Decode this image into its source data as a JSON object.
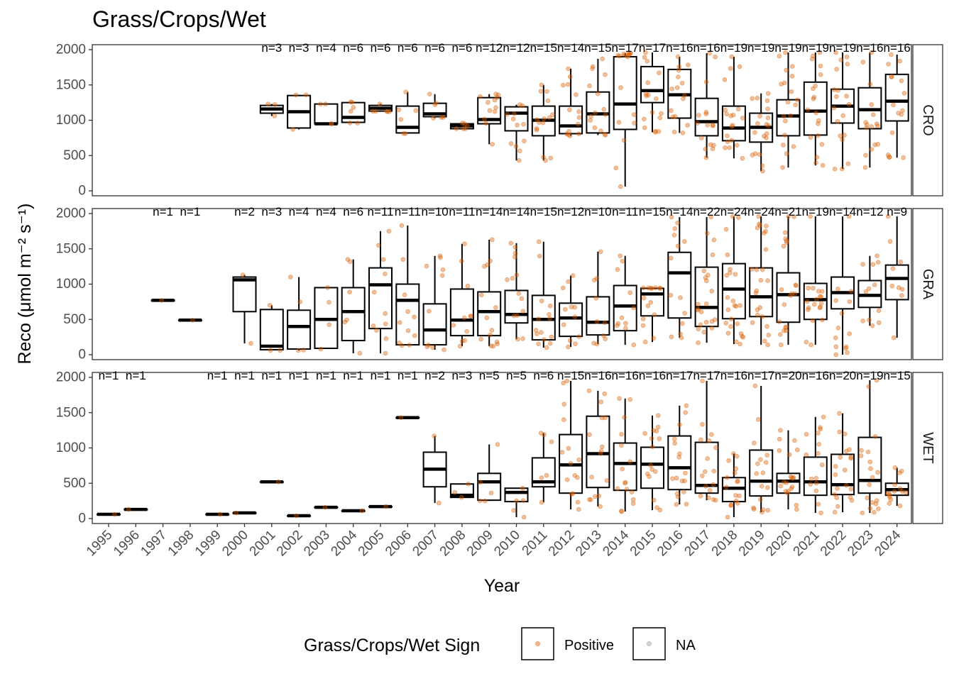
{
  "chart_data": {
    "type": "boxplot",
    "title": "Grass/Crops/Wet",
    "xlabel": "Year",
    "ylabel": "Reco (μmol m⁻² s⁻¹)",
    "ylim": [
      0,
      2000
    ],
    "y_ticks": [
      0,
      500,
      1000,
      1500,
      2000
    ],
    "categories": [
      "1995",
      "1996",
      "1997",
      "1998",
      "1999",
      "2000",
      "2001",
      "2002",
      "2003",
      "2004",
      "2005",
      "2006",
      "2007",
      "2008",
      "2009",
      "2010",
      "2011",
      "2012",
      "2013",
      "2014",
      "2015",
      "2016",
      "2017",
      "2018",
      "2019",
      "2020",
      "2021",
      "2022",
      "2023",
      "2024"
    ],
    "point_color": "#D95F02",
    "legend": {
      "title": "Grass/Crops/Wet Sign",
      "position": "bottom",
      "items": [
        {
          "label": "Positive",
          "color": "#D95F02"
        },
        {
          "label": "NA",
          "color": "#999999"
        }
      ]
    },
    "panels": [
      {
        "strip": "CRO",
        "n_labels": [
          "",
          "",
          "",
          "",
          "",
          "",
          "n=3",
          "n=3",
          "n=4",
          "n=6",
          "n=6",
          "n=6",
          "n=6",
          "n=6",
          "n=12",
          "n=12",
          "n=15",
          "n=14",
          "n=15",
          "n=17",
          "n=17",
          "n=16",
          "n=16",
          "n=19",
          "n=19",
          "n=19",
          "n=19",
          "n=19",
          "n=16",
          "n=16"
        ],
        "boxes": [
          null,
          null,
          null,
          null,
          null,
          null,
          {
            "min": 1060,
            "q1": 1100,
            "median": 1160,
            "q3": 1210,
            "max": 1230
          },
          {
            "min": 870,
            "q1": 890,
            "median": 1120,
            "q3": 1350,
            "max": 1360
          },
          {
            "min": 950,
            "q1": 950,
            "median": 950,
            "q3": 1230,
            "max": 1230
          },
          {
            "min": 960,
            "q1": 970,
            "median": 1040,
            "q3": 1250,
            "max": 1260
          },
          {
            "min": 1120,
            "q1": 1130,
            "median": 1170,
            "q3": 1210,
            "max": 1230
          },
          {
            "min": 810,
            "q1": 820,
            "median": 900,
            "q3": 1200,
            "max": 1400
          },
          {
            "min": 1030,
            "q1": 1050,
            "median": 1090,
            "q3": 1240,
            "max": 1370
          },
          {
            "min": 880,
            "q1": 880,
            "median": 920,
            "q3": 950,
            "max": 960
          },
          {
            "min": 660,
            "q1": 950,
            "median": 1010,
            "q3": 1320,
            "max": 1370
          },
          {
            "min": 430,
            "q1": 850,
            "median": 1100,
            "q3": 1190,
            "max": 1220
          },
          {
            "min": 430,
            "q1": 780,
            "median": 1000,
            "q3": 1200,
            "max": 1500
          },
          {
            "min": 780,
            "q1": 810,
            "median": 920,
            "q3": 1200,
            "max": 1730
          },
          {
            "min": 790,
            "q1": 820,
            "median": 1090,
            "q3": 1400,
            "max": 1870
          },
          {
            "min": 60,
            "q1": 870,
            "median": 1230,
            "q3": 1900,
            "max": 1950
          },
          {
            "min": 830,
            "q1": 1250,
            "median": 1420,
            "q3": 1760,
            "max": 1960
          },
          {
            "min": 820,
            "q1": 1030,
            "median": 1360,
            "q3": 1720,
            "max": 1900
          },
          {
            "min": 470,
            "q1": 780,
            "median": 980,
            "q3": 1310,
            "max": 1950
          },
          {
            "min": 460,
            "q1": 710,
            "median": 890,
            "q3": 1200,
            "max": 1900
          },
          {
            "min": 280,
            "q1": 690,
            "median": 900,
            "q3": 1100,
            "max": 1380
          },
          {
            "min": 330,
            "q1": 780,
            "median": 1060,
            "q3": 1290,
            "max": 1960
          },
          {
            "min": 360,
            "q1": 790,
            "median": 1130,
            "q3": 1540,
            "max": 1960
          },
          {
            "min": 310,
            "q1": 960,
            "median": 1200,
            "q3": 1440,
            "max": 1960
          },
          {
            "min": 330,
            "q1": 880,
            "median": 1150,
            "q3": 1460,
            "max": 1960
          },
          {
            "min": 470,
            "q1": 990,
            "median": 1270,
            "q3": 1650,
            "max": 1930
          }
        ]
      },
      {
        "strip": "GRA",
        "n_labels": [
          "",
          "",
          "n=1",
          "n=1",
          "",
          "n=2",
          "n=3",
          "n=4",
          "n=4",
          "n=6",
          "n=11",
          "n=11",
          "n=10",
          "n=11",
          "n=14",
          "n=14",
          "n=15",
          "n=12",
          "n=10",
          "n=11",
          "n=15",
          "n=14",
          "n=22",
          "n=24",
          "n=24",
          "n=21",
          "n=19",
          "n=14",
          "n=12",
          "n=9"
        ],
        "boxes": [
          null,
          null,
          {
            "min": 770,
            "q1": 770,
            "median": 770,
            "q3": 770,
            "max": 770
          },
          {
            "min": 490,
            "q1": 490,
            "median": 490,
            "q3": 490,
            "max": 490
          },
          null,
          {
            "min": 160,
            "q1": 610,
            "median": 1060,
            "q3": 1100,
            "max": 1130
          },
          {
            "min": 60,
            "q1": 70,
            "median": 120,
            "q3": 640,
            "max": 700
          },
          {
            "min": 60,
            "q1": 80,
            "median": 400,
            "q3": 630,
            "max": 1100
          },
          {
            "min": 80,
            "q1": 90,
            "median": 500,
            "q3": 950,
            "max": 950
          },
          {
            "min": 20,
            "q1": 200,
            "median": 610,
            "q3": 950,
            "max": 1350
          },
          {
            "min": 20,
            "q1": 370,
            "median": 990,
            "q3": 1230,
            "max": 1750
          },
          {
            "min": 130,
            "q1": 140,
            "median": 770,
            "q3": 1000,
            "max": 1830
          },
          {
            "min": 70,
            "q1": 140,
            "median": 350,
            "q3": 720,
            "max": 1400
          },
          {
            "min": 120,
            "q1": 270,
            "median": 490,
            "q3": 930,
            "max": 1570
          },
          {
            "min": 120,
            "q1": 270,
            "median": 610,
            "q3": 890,
            "max": 1630
          },
          {
            "min": 220,
            "q1": 450,
            "median": 570,
            "q3": 910,
            "max": 1580
          },
          {
            "min": 100,
            "q1": 210,
            "median": 500,
            "q3": 840,
            "max": 1600
          },
          {
            "min": 110,
            "q1": 260,
            "median": 520,
            "q3": 730,
            "max": 1120
          },
          {
            "min": 150,
            "q1": 280,
            "median": 460,
            "q3": 820,
            "max": 1460
          },
          {
            "min": 140,
            "q1": 340,
            "median": 690,
            "q3": 980,
            "max": 1400
          },
          {
            "min": 180,
            "q1": 550,
            "median": 860,
            "q3": 940,
            "max": 950
          },
          {
            "min": 240,
            "q1": 520,
            "median": 1160,
            "q3": 1450,
            "max": 1950
          },
          {
            "min": 170,
            "q1": 400,
            "median": 670,
            "q3": 1240,
            "max": 1950
          },
          {
            "min": 150,
            "q1": 510,
            "median": 930,
            "q3": 1290,
            "max": 1960
          },
          {
            "min": 140,
            "q1": 540,
            "median": 820,
            "q3": 1230,
            "max": 1960
          },
          {
            "min": 140,
            "q1": 460,
            "median": 850,
            "q3": 1160,
            "max": 1960
          },
          {
            "min": 140,
            "q1": 500,
            "median": 780,
            "q3": 1010,
            "max": 1960
          },
          {
            "min": 0,
            "q1": 650,
            "median": 880,
            "q3": 1100,
            "max": 1960
          },
          {
            "min": 410,
            "q1": 670,
            "median": 840,
            "q3": 1050,
            "max": 1400
          },
          {
            "min": 240,
            "q1": 780,
            "median": 1080,
            "q3": 1270,
            "max": 1960
          }
        ]
      },
      {
        "strip": "WET",
        "n_labels": [
          "n=1",
          "n=1",
          "",
          "",
          "n=1",
          "n=1",
          "n=1",
          "n=1",
          "n=1",
          "n=1",
          "n=1",
          "n=1",
          "n=2",
          "n=3",
          "n=5",
          "n=5",
          "n=6",
          "n=15",
          "n=16",
          "n=16",
          "n=16",
          "n=17",
          "n=17",
          "n=16",
          "n=17",
          "n=20",
          "n=16",
          "n=20",
          "n=19",
          "n=15"
        ],
        "boxes": [
          {
            "min": 60,
            "q1": 60,
            "median": 60,
            "q3": 60,
            "max": 60
          },
          {
            "min": 130,
            "q1": 130,
            "median": 130,
            "q3": 130,
            "max": 130
          },
          null,
          null,
          {
            "min": 60,
            "q1": 60,
            "median": 60,
            "q3": 60,
            "max": 60
          },
          {
            "min": 80,
            "q1": 80,
            "median": 80,
            "q3": 80,
            "max": 80
          },
          {
            "min": 520,
            "q1": 520,
            "median": 520,
            "q3": 520,
            "max": 520
          },
          {
            "min": 40,
            "q1": 40,
            "median": 40,
            "q3": 40,
            "max": 40
          },
          {
            "min": 160,
            "q1": 160,
            "median": 160,
            "q3": 160,
            "max": 160
          },
          {
            "min": 110,
            "q1": 110,
            "median": 110,
            "q3": 110,
            "max": 110
          },
          {
            "min": 170,
            "q1": 170,
            "median": 170,
            "q3": 170,
            "max": 170
          },
          {
            "min": 1430,
            "q1": 1430,
            "median": 1430,
            "q3": 1430,
            "max": 1430
          },
          {
            "min": 220,
            "q1": 450,
            "median": 700,
            "q3": 940,
            "max": 1170
          },
          {
            "min": 300,
            "q1": 300,
            "median": 330,
            "q3": 490,
            "max": 490
          },
          {
            "min": 250,
            "q1": 260,
            "median": 520,
            "q3": 640,
            "max": 1050
          },
          {
            "min": 20,
            "q1": 240,
            "median": 370,
            "q3": 430,
            "max": 430
          },
          {
            "min": 230,
            "q1": 450,
            "median": 520,
            "q3": 860,
            "max": 1210
          },
          {
            "min": 130,
            "q1": 360,
            "median": 760,
            "q3": 1190,
            "max": 1950
          },
          {
            "min": 170,
            "q1": 440,
            "median": 920,
            "q3": 1450,
            "max": 1810
          },
          {
            "min": 100,
            "q1": 400,
            "median": 780,
            "q3": 1070,
            "max": 1700
          },
          {
            "min": 120,
            "q1": 430,
            "median": 770,
            "q3": 1010,
            "max": 1460
          },
          {
            "min": 200,
            "q1": 410,
            "median": 720,
            "q3": 1170,
            "max": 1600
          },
          {
            "min": 260,
            "q1": 360,
            "median": 470,
            "q3": 1080,
            "max": 1950
          },
          {
            "min": 20,
            "q1": 240,
            "median": 430,
            "q3": 580,
            "max": 920
          },
          {
            "min": 90,
            "q1": 320,
            "median": 530,
            "q3": 970,
            "max": 1880
          },
          {
            "min": 130,
            "q1": 360,
            "median": 530,
            "q3": 640,
            "max": 1250
          },
          {
            "min": 80,
            "q1": 330,
            "median": 520,
            "q3": 870,
            "max": 1440
          },
          {
            "min": 90,
            "q1": 340,
            "median": 480,
            "q3": 910,
            "max": 1490
          },
          {
            "min": 80,
            "q1": 360,
            "median": 540,
            "q3": 1150,
            "max": 1960
          },
          {
            "min": 180,
            "q1": 330,
            "median": 410,
            "q3": 500,
            "max": 720
          }
        ]
      }
    ]
  }
}
